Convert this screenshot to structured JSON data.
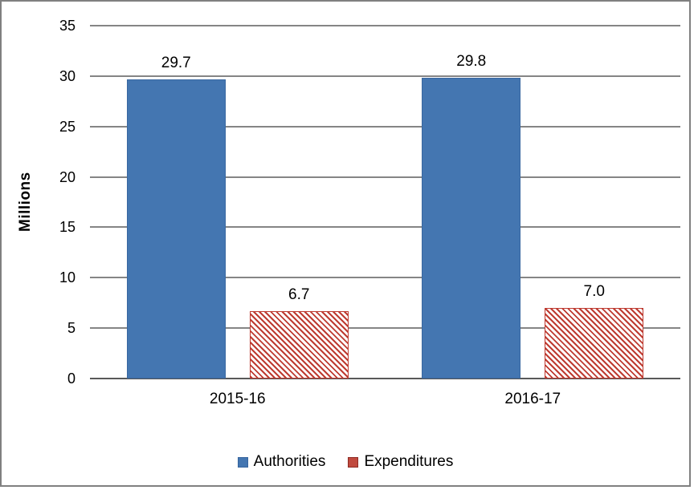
{
  "chart_data": {
    "type": "bar",
    "title": "",
    "xlabel": "",
    "ylabel": "Millions",
    "categories": [
      "2015-16",
      "2016-17"
    ],
    "series": [
      {
        "name": "Authorities",
        "values": [
          29.7,
          29.8
        ],
        "pattern": "solid",
        "fill": "#4476B1",
        "border": "#3A68A0",
        "legend_fill": "#4476B1",
        "legend_border": "#36649E"
      },
      {
        "name": "Expenditures",
        "values": [
          6.7,
          7.0
        ],
        "pattern": "diagonal-hatch",
        "fill": "#BE3B31",
        "border": "#BE3B31",
        "legend_fill": "#C04A3E",
        "legend_border": "#8E2A22"
      }
    ],
    "data_labels": [
      [
        "29.7",
        "29.8"
      ],
      [
        "6.7",
        "7.0"
      ]
    ],
    "ylim": [
      0,
      35
    ],
    "ytick_step": 5,
    "ytick_labels": [
      "0",
      "5",
      "10",
      "15",
      "20",
      "25",
      "30",
      "35"
    ],
    "grid": true,
    "legend_position": "bottom",
    "gridline_color": "#858585",
    "axis_line_color": "#595959",
    "frame_border_color": "#808080",
    "text_color": "#000000"
  }
}
